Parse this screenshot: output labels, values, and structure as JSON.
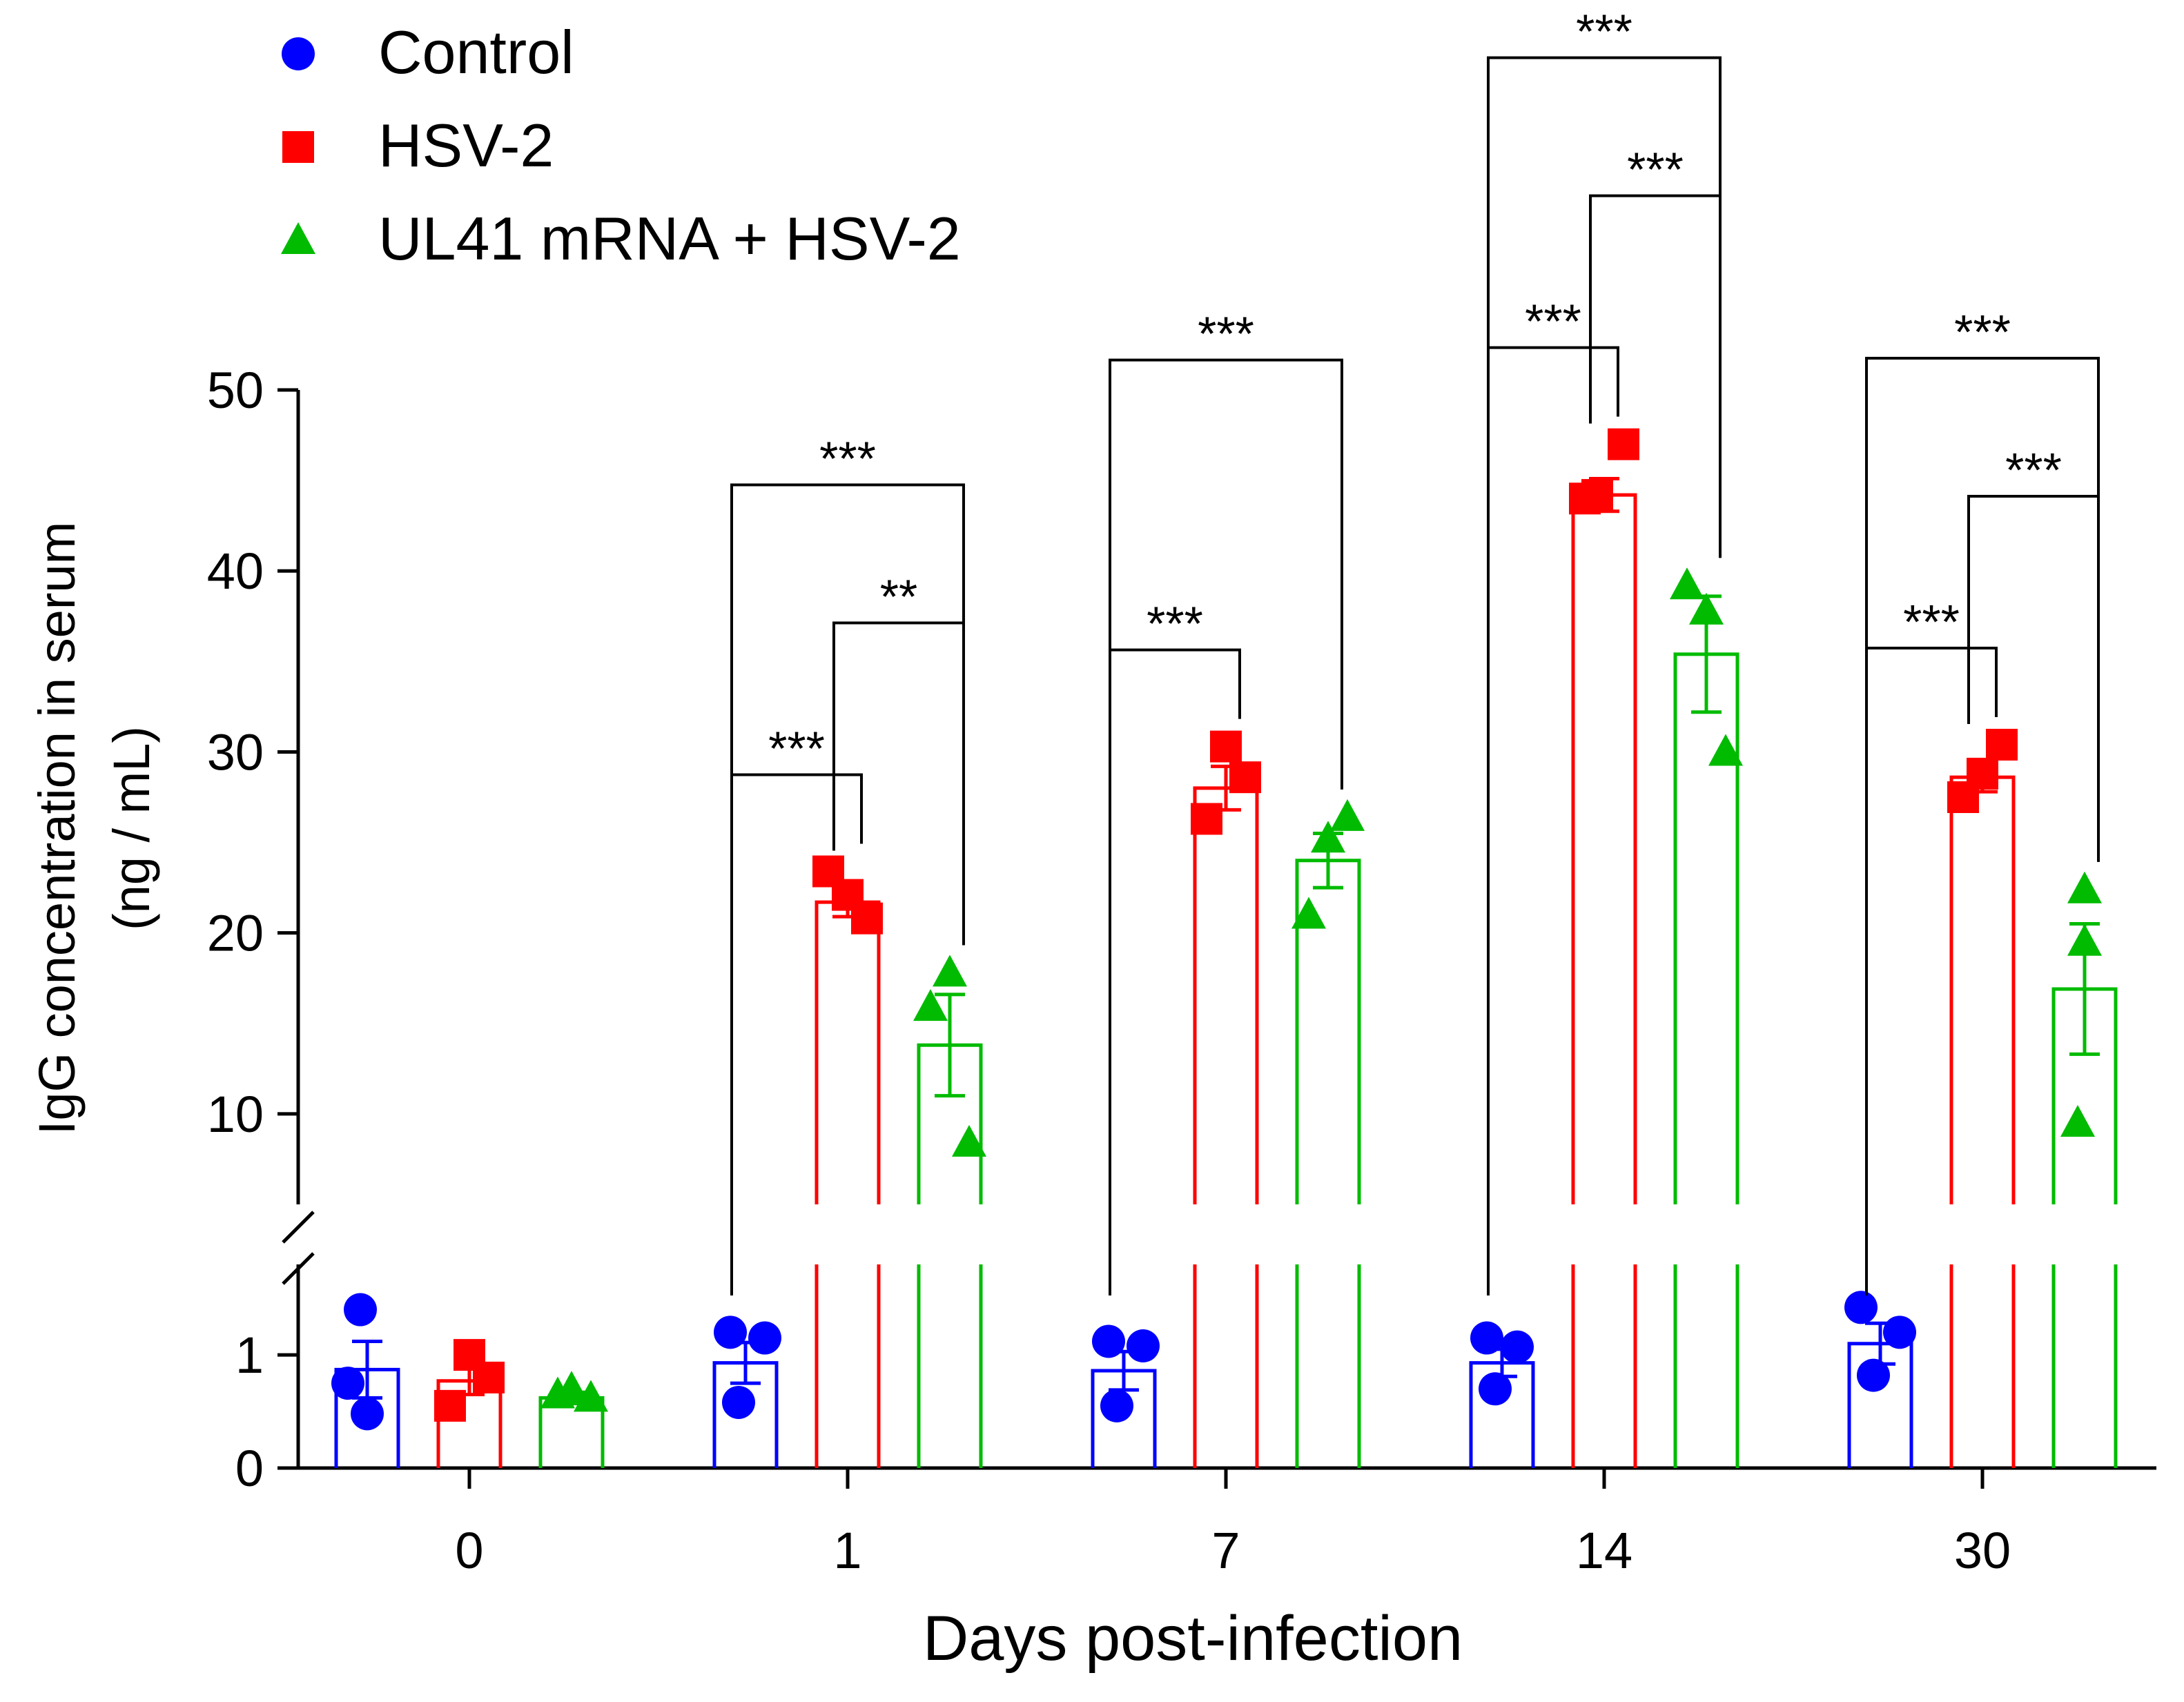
{
  "chart_data": {
    "type": "bar",
    "title": "",
    "xlabel": "Days post-infection",
    "ylabel": "IgG concentration in serum",
    "ylabel_units": "(ng / mL)",
    "categories": [
      "0",
      "1",
      "7",
      "14",
      "30"
    ],
    "axis_break": {
      "lower_range": [
        0,
        1.8
      ],
      "upper_range": [
        5,
        50
      ]
    },
    "y_ticks_lower": [
      "0",
      "1"
    ],
    "y_ticks_upper": [
      "10",
      "20",
      "30",
      "40",
      "50"
    ],
    "legend_position": "top-left",
    "series": [
      {
        "name": "Control",
        "color": "#0000ff",
        "marker": "circle",
        "values": [
          0.87,
          0.93,
          0.86,
          0.93,
          1.1
        ],
        "sem": [
          0.25,
          0.18,
          0.17,
          0.12,
          0.18
        ],
        "points": [
          [
            1.4,
            0.75,
            0.48
          ],
          [
            1.2,
            1.15,
            0.58
          ],
          [
            1.12,
            1.08,
            0.55
          ],
          [
            1.15,
            1.07,
            0.7
          ],
          [
            1.42,
            1.2,
            0.82
          ]
        ]
      },
      {
        "name": "HSV-2",
        "color": "#ff0000",
        "marker": "square",
        "values": [
          0.77,
          21.7,
          28.0,
          44.2,
          28.6
        ],
        "sem": [
          0.12,
          0.8,
          1.2,
          0.9,
          0.8
        ],
        "points": [
          [
            1.0,
            0.8,
            0.55
          ],
          [
            23.4,
            22.1,
            20.8
          ],
          [
            30.3,
            28.6,
            26.3
          ],
          [
            47.0,
            44.2,
            44.0
          ],
          [
            30.4,
            28.8,
            27.5
          ]
        ]
      },
      {
        "name": "UL41 mRNA + HSV-2",
        "color": "#00bb00",
        "marker": "triangle",
        "values": [
          0.62,
          13.8,
          24.0,
          35.4,
          16.9
        ],
        "sem": [
          0.05,
          2.8,
          1.5,
          3.2,
          3.6
        ],
        "points": [
          [
            0.65,
            0.7,
            0.62
          ],
          [
            17.8,
            15.9,
            8.4
          ],
          [
            26.4,
            25.2,
            21.0
          ],
          [
            39.2,
            37.8,
            30.0
          ],
          [
            22.4,
            19.5,
            9.5
          ]
        ]
      }
    ],
    "annotations": [
      {
        "category": "1",
        "label": "***",
        "from_series": 0,
        "to_series": 1,
        "level": 1
      },
      {
        "category": "1",
        "label": "**",
        "from_series": 1,
        "to_series": 2,
        "level": 2
      },
      {
        "category": "1",
        "label": "***",
        "from_series": 0,
        "to_series": 2,
        "level": 3
      },
      {
        "category": "7",
        "label": "***",
        "from_series": 0,
        "to_series": 1,
        "level": 1
      },
      {
        "category": "7",
        "label": "***",
        "from_series": 0,
        "to_series": 2,
        "level": 3
      },
      {
        "category": "14",
        "label": "***",
        "from_series": 0,
        "to_series": 1,
        "level": 1
      },
      {
        "category": "14",
        "label": "***",
        "from_series": 1,
        "to_series": 2,
        "level": 2
      },
      {
        "category": "14",
        "label": "***",
        "from_series": 0,
        "to_series": 2,
        "level": 3
      },
      {
        "category": "30",
        "label": "***",
        "from_series": 0,
        "to_series": 1,
        "level": 1
      },
      {
        "category": "30",
        "label": "***",
        "from_series": 1,
        "to_series": 2,
        "level": 2
      },
      {
        "category": "30",
        "label": "***",
        "from_series": 0,
        "to_series": 2,
        "level": 3
      }
    ]
  }
}
